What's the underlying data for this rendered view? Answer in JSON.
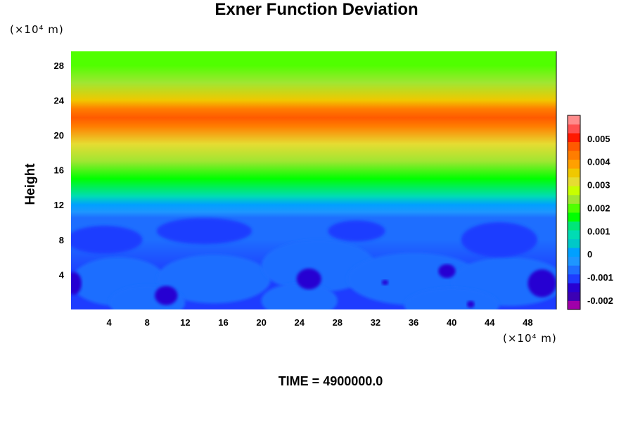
{
  "chart_data": {
    "type": "heatmap",
    "title": "Exner Function Deviation",
    "ylabel": "Height",
    "y_unit": "(×10⁴ m)",
    "x_unit": "(×10⁴ m)",
    "x_ticks": [
      "4",
      "8",
      "12",
      "16",
      "20",
      "24",
      "28",
      "32",
      "36",
      "40",
      "44",
      "48"
    ],
    "y_ticks": [
      "4",
      "8",
      "12",
      "16",
      "20",
      "24",
      "28"
    ],
    "xlim": [
      0,
      51
    ],
    "ylim": [
      0,
      29.6
    ],
    "colorbar": {
      "ticks": [
        "0.005",
        "0.004",
        "0.003",
        "0.002",
        "0.001",
        "0",
        "-0.001",
        "-0.002"
      ],
      "range": [
        -0.0024,
        0.006
      ]
    },
    "profile": [
      {
        "height": 0,
        "value": -0.0011
      },
      {
        "height": 4,
        "value": -0.0011
      },
      {
        "height": 8,
        "value": -0.0008
      },
      {
        "height": 10.5,
        "value": -0.00075
      },
      {
        "height": 11.2,
        "value": -0.0003
      },
      {
        "height": 12,
        "value": 0.0002
      },
      {
        "height": 13,
        "value": 0.0009
      },
      {
        "height": 15,
        "value": 0.0016
      },
      {
        "height": 17,
        "value": 0.0022
      },
      {
        "height": 19,
        "value": 0.003
      },
      {
        "height": 21,
        "value": 0.0041
      },
      {
        "height": 22,
        "value": 0.0046
      },
      {
        "height": 23,
        "value": 0.0042
      },
      {
        "height": 24,
        "value": 0.0034
      },
      {
        "height": 26,
        "value": 0.0025
      },
      {
        "height": 28,
        "value": 0.002
      },
      {
        "height": 29.6,
        "value": 0.0018
      }
    ],
    "time_label": "TIME = 4900000.0"
  },
  "colors": {
    "palette": [
      "#9f00aa",
      "#3c00b4",
      "#2800d2",
      "#1e3cff",
      "#1e6eff",
      "#1e96ff",
      "#00a0ff",
      "#00c8c8",
      "#00dcb4",
      "#00e678",
      "#00ff00",
      "#50ff00",
      "#a0e632",
      "#c8ff00",
      "#e6dc32",
      "#f0c800",
      "#ffa000",
      "#ff7d00",
      "#ff5a00",
      "#ff1900",
      "#ff5050",
      "#ff8c8c"
    ]
  }
}
